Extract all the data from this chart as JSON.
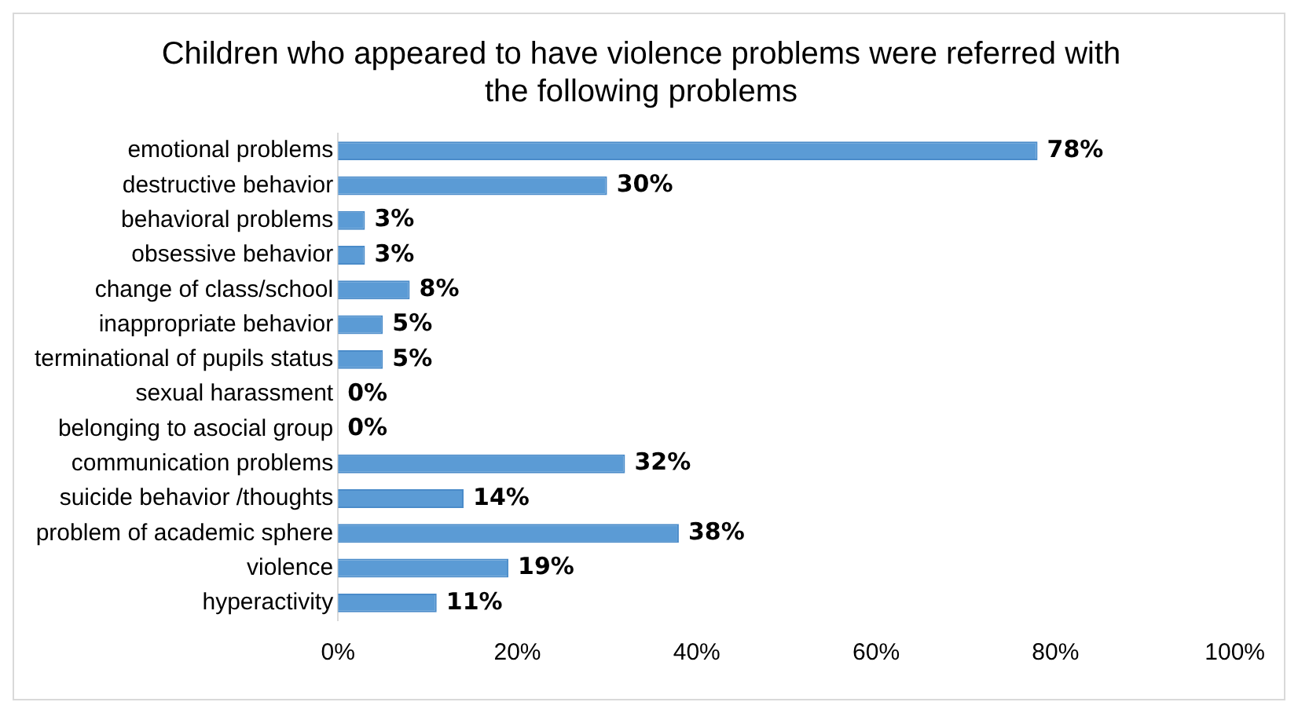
{
  "chart_data": {
    "type": "bar",
    "orientation": "horizontal",
    "title": "Children who appeared to have violence problems were referred with the following problems",
    "categories": [
      "emotional problems",
      "destructive behavior",
      "behavioral problems",
      "obsessive behavior",
      "change of class/school",
      "inappropriate behavior",
      "terminational of pupils status",
      "sexual harassment",
      "belonging to asocial group",
      "communication problems",
      "suicide behavior /thoughts",
      "problem of academic sphere",
      "violence",
      "hyperactivity"
    ],
    "values": [
      78,
      30,
      3,
      3,
      8,
      5,
      5,
      0,
      0,
      32,
      14,
      38,
      19,
      11
    ],
    "value_labels": [
      "78%",
      "30%",
      "3%",
      "3%",
      "8%",
      "5%",
      "5%",
      "0%",
      "0%",
      "32%",
      "14%",
      "38%",
      "19%",
      "11%"
    ],
    "color": "#5b9bd5",
    "xlim": [
      0,
      100
    ],
    "xticks": [
      {
        "value": 0,
        "label": "0%"
      },
      {
        "value": 20,
        "label": "20%"
      },
      {
        "value": 40,
        "label": "40%"
      },
      {
        "value": 60,
        "label": "60%"
      },
      {
        "value": 80,
        "label": "80%"
      },
      {
        "value": 100,
        "label": "100%"
      }
    ],
    "grid": false,
    "legend": false
  }
}
